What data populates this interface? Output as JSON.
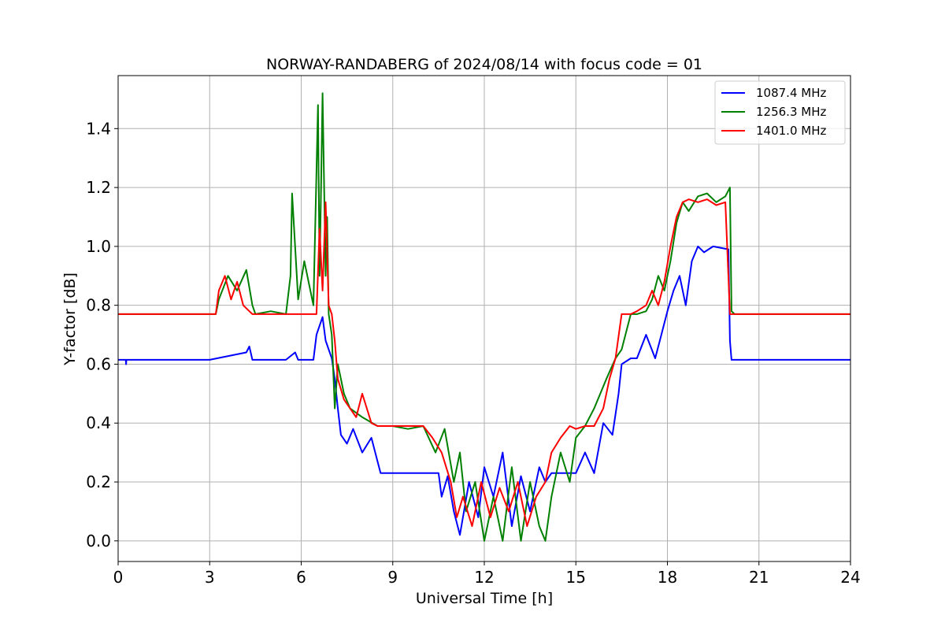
{
  "chart_data": {
    "type": "line",
    "title": "NORWAY-RANDABERG of 2024/08/14 with focus code = 01",
    "xlabel": "Universal Time [h]",
    "ylabel": "Y-factor [dB]",
    "xlim": [
      0,
      24
    ],
    "ylim": [
      -0.07,
      1.58
    ],
    "xticks": [
      0,
      3,
      6,
      9,
      12,
      15,
      18,
      21,
      24
    ],
    "xtick_labels": [
      "0",
      "3",
      "6",
      "9",
      "12",
      "15",
      "18",
      "21",
      "24"
    ],
    "yticks": [
      0.0,
      0.2,
      0.4,
      0.6,
      0.8,
      1.0,
      1.2,
      1.4
    ],
    "ytick_labels": [
      "0.0",
      "0.2",
      "0.4",
      "0.6",
      "0.8",
      "1.0",
      "1.2",
      "1.4"
    ],
    "grid": true,
    "legend_position": "top-right",
    "series": [
      {
        "name": "1087.4 MHz",
        "color": "#0000ff",
        "x": [
          0,
          0.25,
          0.26,
          0.27,
          2,
          3,
          4.2,
          4.3,
          4.4,
          5.5,
          5.8,
          5.9,
          6.4,
          6.5,
          6.7,
          6.8,
          7.0,
          7.1,
          7.2,
          7.3,
          7.5,
          7.7,
          8.0,
          8.3,
          8.5,
          8.6,
          9.0,
          9.5,
          10.0,
          10.5,
          10.6,
          10.8,
          11.0,
          11.2,
          11.5,
          11.8,
          12.0,
          12.3,
          12.6,
          12.9,
          13.2,
          13.5,
          13.8,
          14.0,
          14.2,
          14.5,
          14.8,
          15.0,
          15.3,
          15.6,
          15.9,
          16.2,
          16.4,
          16.5,
          16.8,
          17.0,
          17.3,
          17.6,
          17.8,
          18.0,
          18.2,
          18.4,
          18.6,
          18.8,
          19.0,
          19.2,
          19.5,
          20.0,
          20.05,
          20.1,
          20.2,
          21.0,
          22.0,
          23.0,
          24.0
        ],
        "y": [
          0.615,
          0.615,
          0.6,
          0.615,
          0.615,
          0.615,
          0.64,
          0.66,
          0.615,
          0.615,
          0.64,
          0.615,
          0.615,
          0.7,
          0.76,
          0.68,
          0.62,
          0.55,
          0.45,
          0.36,
          0.33,
          0.38,
          0.3,
          0.35,
          0.27,
          0.23,
          0.23,
          0.23,
          0.23,
          0.23,
          0.15,
          0.22,
          0.1,
          0.02,
          0.2,
          0.08,
          0.25,
          0.15,
          0.3,
          0.05,
          0.22,
          0.1,
          0.25,
          0.2,
          0.23,
          0.23,
          0.23,
          0.23,
          0.3,
          0.23,
          0.4,
          0.36,
          0.5,
          0.6,
          0.62,
          0.62,
          0.7,
          0.62,
          0.7,
          0.78,
          0.85,
          0.9,
          0.8,
          0.95,
          1.0,
          0.98,
          1.0,
          0.99,
          0.68,
          0.615,
          0.615,
          0.615,
          0.615,
          0.615,
          0.615
        ]
      },
      {
        "name": "1256.3 MHz",
        "color": "#008000",
        "x": [
          0,
          3.2,
          3.3,
          3.6,
          3.9,
          4.2,
          4.4,
          4.5,
          5.0,
          5.5,
          5.65,
          5.7,
          5.9,
          6.1,
          6.4,
          6.55,
          6.6,
          6.65,
          6.7,
          6.8,
          6.85,
          6.9,
          7.0,
          7.1,
          7.2,
          7.4,
          7.6,
          8.0,
          8.5,
          8.6,
          9.0,
          9.5,
          10.0,
          10.4,
          10.7,
          11.0,
          11.2,
          11.4,
          11.7,
          12.0,
          12.3,
          12.6,
          12.9,
          13.2,
          13.5,
          13.8,
          14.0,
          14.2,
          14.5,
          14.8,
          15.0,
          15.3,
          15.6,
          16.0,
          16.3,
          16.5,
          16.8,
          17.0,
          17.3,
          17.5,
          17.7,
          17.9,
          18.1,
          18.3,
          18.5,
          18.7,
          19.0,
          19.3,
          19.6,
          19.9,
          20.05,
          20.1,
          20.2,
          21.0,
          22.0,
          23.0,
          24.0
        ],
        "y": [
          0.77,
          0.77,
          0.82,
          0.9,
          0.85,
          0.92,
          0.8,
          0.77,
          0.78,
          0.77,
          0.9,
          1.18,
          0.82,
          0.95,
          0.8,
          1.48,
          0.9,
          1.2,
          1.52,
          0.9,
          1.1,
          0.77,
          0.7,
          0.45,
          0.6,
          0.5,
          0.45,
          0.42,
          0.39,
          0.39,
          0.39,
          0.38,
          0.39,
          0.3,
          0.38,
          0.2,
          0.3,
          0.1,
          0.2,
          0.0,
          0.15,
          0.0,
          0.25,
          0.0,
          0.2,
          0.05,
          0.0,
          0.15,
          0.3,
          0.2,
          0.35,
          0.39,
          0.45,
          0.55,
          0.62,
          0.65,
          0.77,
          0.77,
          0.78,
          0.82,
          0.9,
          0.85,
          0.95,
          1.08,
          1.15,
          1.12,
          1.17,
          1.18,
          1.15,
          1.17,
          1.2,
          0.78,
          0.77,
          0.77,
          0.77,
          0.77,
          0.77
        ]
      },
      {
        "name": "1401.0 MHz",
        "color": "#ff0000",
        "x": [
          0,
          3.2,
          3.3,
          3.5,
          3.7,
          3.9,
          4.1,
          4.3,
          4.4,
          5.0,
          6.0,
          6.5,
          6.6,
          6.7,
          6.8,
          6.9,
          7.0,
          7.1,
          7.2,
          7.4,
          7.6,
          7.8,
          8.0,
          8.3,
          8.5,
          8.6,
          9.0,
          9.5,
          10.0,
          10.3,
          10.6,
          10.9,
          11.1,
          11.3,
          11.6,
          11.9,
          12.2,
          12.5,
          12.8,
          13.1,
          13.4,
          13.7,
          14.0,
          14.2,
          14.5,
          14.8,
          15.0,
          15.3,
          15.6,
          15.9,
          16.1,
          16.3,
          16.5,
          16.8,
          17.0,
          17.3,
          17.5,
          17.7,
          17.9,
          18.1,
          18.3,
          18.5,
          18.7,
          19.0,
          19.3,
          19.6,
          19.9,
          20.05,
          20.1,
          20.2,
          21.0,
          22.0,
          23.0,
          24.0
        ],
        "y": [
          0.77,
          0.77,
          0.85,
          0.9,
          0.82,
          0.88,
          0.8,
          0.78,
          0.77,
          0.77,
          0.77,
          0.77,
          1.06,
          0.85,
          1.15,
          0.8,
          0.77,
          0.68,
          0.55,
          0.48,
          0.45,
          0.42,
          0.5,
          0.4,
          0.39,
          0.39,
          0.39,
          0.39,
          0.39,
          0.35,
          0.3,
          0.2,
          0.08,
          0.15,
          0.05,
          0.2,
          0.08,
          0.18,
          0.1,
          0.2,
          0.05,
          0.15,
          0.2,
          0.3,
          0.35,
          0.39,
          0.38,
          0.39,
          0.39,
          0.45,
          0.55,
          0.62,
          0.77,
          0.77,
          0.78,
          0.8,
          0.85,
          0.8,
          0.88,
          1.0,
          1.1,
          1.15,
          1.16,
          1.15,
          1.16,
          1.14,
          1.15,
          0.77,
          0.77,
          0.77,
          0.77,
          0.77,
          0.77,
          0.77
        ]
      }
    ]
  }
}
